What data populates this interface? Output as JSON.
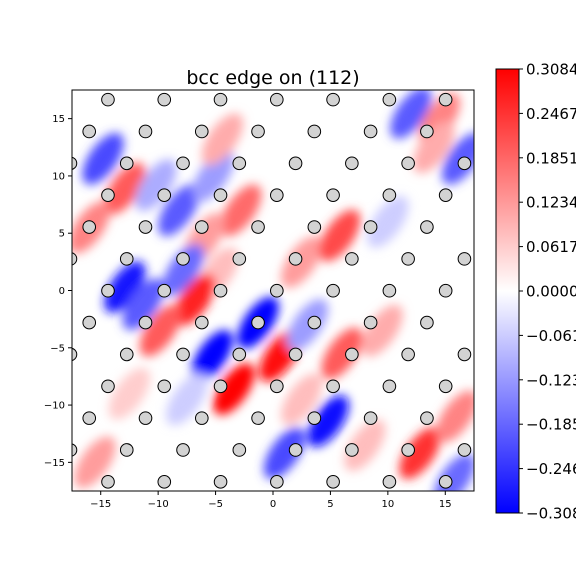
{
  "chart_data": {
    "type": "heatmap",
    "title": "bcc edge on (112)",
    "xlabel": "",
    "ylabel": "",
    "xlim": [
      -17.5,
      17.5
    ],
    "ylim": [
      -17.5,
      17.5
    ],
    "xticks": [
      -15,
      -10,
      -5,
      0,
      5,
      10,
      15
    ],
    "yticks": [
      -15,
      -10,
      -5,
      0,
      5,
      10,
      15
    ],
    "colormap": "bwr",
    "colors": {
      "negative": "#0000ff",
      "zero": "#ffffff",
      "positive": "#ff0000",
      "atom_fill": "#d3d3d3",
      "atom_edge": "#000000"
    },
    "colorbar": {
      "vmin": -0.3084,
      "vmax": 0.3084,
      "tick_labels": [
        "0.3084",
        "0.2467",
        "0.1851",
        "0.1234",
        "0.0617",
        "0.0000",
        "-0.0617",
        "-0.1234",
        "-0.1851",
        "-0.2467",
        "-0.3084"
      ]
    },
    "atoms": {
      "lattice_origin": [
        -1.3,
        -2.8
      ],
      "a_vector": [
        4.9,
        0.0
      ],
      "b_vector": [
        1.633,
        2.78
      ],
      "marker": "circle"
    },
    "lobes": [
      {
        "x": -14.8,
        "y": 11.5,
        "v": -0.22
      },
      {
        "x": -12.9,
        "y": 8.9,
        "v": 0.2
      },
      {
        "x": -10.2,
        "y": 9.2,
        "v": -0.1
      },
      {
        "x": -8.2,
        "y": 7.0,
        "v": -0.2
      },
      {
        "x": -5.2,
        "y": 10.0,
        "v": -0.12
      },
      {
        "x": -4.4,
        "y": 13.2,
        "v": 0.1
      },
      {
        "x": -2.8,
        "y": 7.0,
        "v": 0.18
      },
      {
        "x": -6.0,
        "y": 4.5,
        "v": 0.12
      },
      {
        "x": -7.8,
        "y": 1.8,
        "v": -0.18
      },
      {
        "x": -4.8,
        "y": 1.5,
        "v": 0.08
      },
      {
        "x": -12.9,
        "y": 0.3,
        "v": -0.28
      },
      {
        "x": -11.3,
        "y": -1.2,
        "v": -0.2
      },
      {
        "x": -6.8,
        "y": -0.8,
        "v": 0.27
      },
      {
        "x": -9.8,
        "y": -3.5,
        "v": 0.2
      },
      {
        "x": -1.3,
        "y": -2.8,
        "v": -0.31
      },
      {
        "x": -5.3,
        "y": -5.7,
        "v": -0.31
      },
      {
        "x": 0.6,
        "y": -5.7,
        "v": 0.3
      },
      {
        "x": -3.4,
        "y": -8.6,
        "v": 0.31
      },
      {
        "x": 3.0,
        "y": -3.0,
        "v": -0.12
      },
      {
        "x": 6.0,
        "y": -5.5,
        "v": 0.2
      },
      {
        "x": 2.5,
        "y": 2.5,
        "v": 0.12
      },
      {
        "x": 5.8,
        "y": 4.8,
        "v": 0.22
      },
      {
        "x": 9.5,
        "y": -3.5,
        "v": 0.1
      },
      {
        "x": 4.8,
        "y": -11.4,
        "v": -0.3
      },
      {
        "x": 1.0,
        "y": -14.2,
        "v": -0.22
      },
      {
        "x": 2.5,
        "y": -9.5,
        "v": 0.08
      },
      {
        "x": -7.5,
        "y": -9.5,
        "v": -0.06
      },
      {
        "x": -12.5,
        "y": -9.0,
        "v": 0.06
      },
      {
        "x": 8.0,
        "y": -13.5,
        "v": 0.08
      },
      {
        "x": 12.8,
        "y": -14.2,
        "v": 0.25
      },
      {
        "x": 15.8,
        "y": -16.5,
        "v": -0.18
      },
      {
        "x": 16.0,
        "y": -11.0,
        "v": 0.15
      },
      {
        "x": 12.0,
        "y": 15.5,
        "v": -0.2
      },
      {
        "x": 14.5,
        "y": 15.0,
        "v": 0.15
      },
      {
        "x": 16.5,
        "y": 11.5,
        "v": -0.2
      },
      {
        "x": 14.0,
        "y": 12.5,
        "v": 0.1
      },
      {
        "x": -15.5,
        "y": -15.0,
        "v": 0.12
      },
      {
        "x": -16.0,
        "y": 5.5,
        "v": 0.15
      },
      {
        "x": 10.0,
        "y": 6.0,
        "v": -0.06
      }
    ]
  }
}
